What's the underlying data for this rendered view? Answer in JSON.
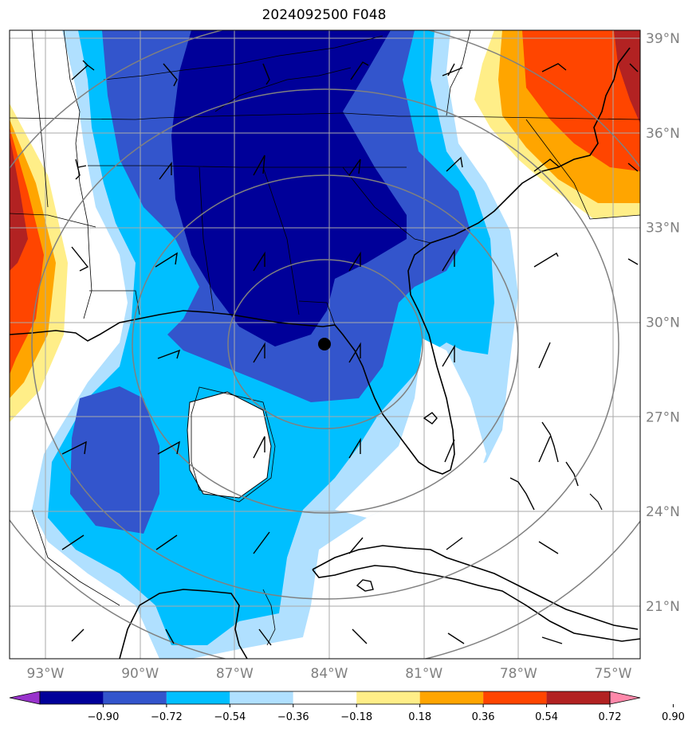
{
  "title": "2024092500 F048",
  "map": {
    "lat_labels": [
      "39°N",
      "36°N",
      "33°N",
      "30°N",
      "27°N",
      "24°N",
      "21°N"
    ],
    "lon_labels": [
      "93°W",
      "90°W",
      "87°W",
      "84°W",
      "81°W",
      "78°W",
      "75°W"
    ],
    "lat_values": [
      39,
      36,
      33,
      30,
      27,
      24,
      21
    ],
    "lon_values": [
      -93,
      -90,
      -87,
      -84,
      -81,
      -78,
      -75
    ],
    "extent": {
      "lon_min": -94.2,
      "lon_max": -74.2,
      "lat_min": 19.0,
      "lat_max": 39.3
    },
    "center_marker": {
      "lon": -84.0,
      "lat": 29.3
    },
    "range_rings_deg": [
      3,
      5.5,
      8.5,
      11
    ]
  },
  "colorbar": {
    "levels": [
      "−0.90",
      "−0.72",
      "−0.54",
      "−0.36",
      "−0.18",
      "0.18",
      "0.36",
      "0.54",
      "0.72",
      "0.90"
    ],
    "colors": [
      "#9933cc",
      "#000099",
      "#3355cc",
      "#00bfff",
      "#b0e0ff",
      "#ffffff",
      "#ffee88",
      "#ffa500",
      "#ff4500",
      "#b22222",
      "#ff88aa"
    ]
  }
}
